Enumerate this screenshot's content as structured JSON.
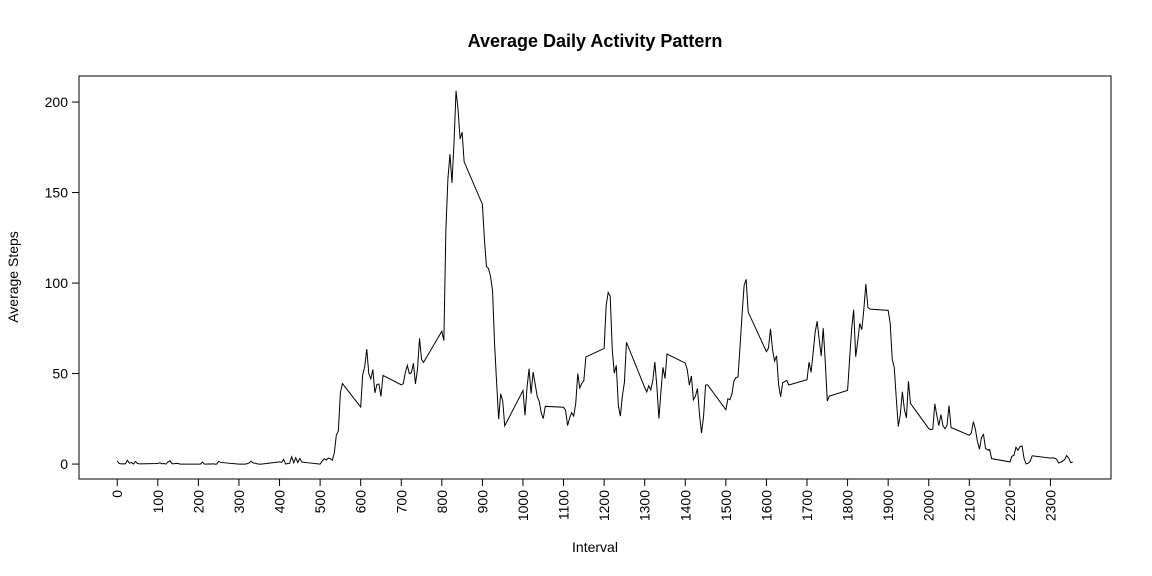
{
  "chart_data": {
    "type": "line",
    "title": "Average Daily Activity Pattern",
    "x_label": "Interval",
    "y_label": "Average Steps",
    "color": "#000000",
    "x": [
      0,
      5,
      10,
      15,
      20,
      25,
      30,
      35,
      40,
      45,
      50,
      55,
      100,
      105,
      110,
      115,
      120,
      125,
      130,
      135,
      140,
      145,
      150,
      155,
      200,
      205,
      210,
      215,
      220,
      225,
      230,
      235,
      240,
      245,
      250,
      255,
      300,
      305,
      310,
      315,
      320,
      325,
      330,
      335,
      340,
      345,
      350,
      355,
      400,
      405,
      410,
      415,
      420,
      425,
      430,
      435,
      440,
      445,
      450,
      455,
      500,
      505,
      510,
      515,
      520,
      525,
      530,
      535,
      540,
      545,
      550,
      555,
      600,
      605,
      610,
      615,
      620,
      625,
      630,
      635,
      640,
      645,
      650,
      655,
      700,
      705,
      710,
      715,
      720,
      725,
      730,
      735,
      740,
      745,
      750,
      755,
      800,
      805,
      810,
      815,
      820,
      825,
      830,
      835,
      840,
      845,
      850,
      855,
      900,
      905,
      910,
      915,
      920,
      925,
      930,
      935,
      940,
      945,
      950,
      955,
      1000,
      1005,
      1010,
      1015,
      1020,
      1025,
      1030,
      1035,
      1040,
      1045,
      1050,
      1055,
      1100,
      1105,
      1110,
      1115,
      1120,
      1125,
      1130,
      1135,
      1140,
      1145,
      1150,
      1155,
      1200,
      1205,
      1210,
      1215,
      1220,
      1225,
      1230,
      1235,
      1240,
      1245,
      1250,
      1255,
      1300,
      1305,
      1310,
      1315,
      1320,
      1325,
      1330,
      1335,
      1340,
      1345,
      1350,
      1355,
      1400,
      1405,
      1410,
      1415,
      1420,
      1425,
      1430,
      1435,
      1440,
      1445,
      1450,
      1455,
      1500,
      1505,
      1510,
      1515,
      1520,
      1525,
      1530,
      1535,
      1540,
      1545,
      1550,
      1555,
      1600,
      1605,
      1610,
      1615,
      1620,
      1625,
      1630,
      1635,
      1640,
      1645,
      1650,
      1655,
      1700,
      1705,
      1710,
      1715,
      1720,
      1725,
      1730,
      1735,
      1740,
      1745,
      1750,
      1755,
      1800,
      1805,
      1810,
      1815,
      1820,
      1825,
      1830,
      1835,
      1840,
      1845,
      1850,
      1855,
      1900,
      1905,
      1910,
      1915,
      1920,
      1925,
      1930,
      1935,
      1940,
      1945,
      1950,
      1955,
      2000,
      2005,
      2010,
      2015,
      2020,
      2025,
      2030,
      2035,
      2040,
      2045,
      2050,
      2055,
      2100,
      2105,
      2110,
      2115,
      2120,
      2125,
      2130,
      2135,
      2140,
      2145,
      2150,
      2155,
      2200,
      2205,
      2210,
      2215,
      2220,
      2225,
      2230,
      2235,
      2240,
      2245,
      2250,
      2255,
      2300,
      2305,
      2310,
      2315,
      2320,
      2325,
      2330,
      2335,
      2340,
      2345,
      2350,
      2355
    ],
    "values": [
      1.7,
      0.3,
      0.1,
      0.2,
      0.1,
      2.1,
      0.5,
      0.9,
      0,
      1.5,
      0.3,
      0.1,
      0.3,
      0.7,
      0.2,
      0.3,
      0,
      1.1,
      1.8,
      0.2,
      0.2,
      0.4,
      0.3,
      0,
      0,
      0,
      1.1,
      0,
      0,
      0.1,
      0,
      0.2,
      0,
      0,
      1.5,
      0.9,
      0,
      0,
      0,
      0,
      0.2,
      0.6,
      1.6,
      0.6,
      0.5,
      0.1,
      0,
      0,
      1.2,
      0.9,
      2.6,
      0,
      0.3,
      0.4,
      4.1,
      0.7,
      3.5,
      0.8,
      3.1,
      1.1,
      0,
      1.6,
      3,
      2.2,
      3.3,
      3,
      2.1,
      6.1,
      16,
      18.3,
      39.5,
      44.5,
      31.5,
      49.3,
      53.8,
      63.5,
      50,
      47.1,
      52.2,
      39.3,
      44,
      44.2,
      37.4,
      49,
      43.8,
      44.4,
      50.5,
      54.5,
      49.9,
      50.5,
      55.7,
      44.3,
      52.3,
      69.5,
      57.8,
      56.2,
      73.4,
      68.2,
      129.4,
      157.5,
      171.2,
      155.4,
      177.3,
      206.2,
      195.9,
      179.6,
      183.4,
      167,
      143.5,
      124,
      109.1,
      108.1,
      103.7,
      95.9,
      66.2,
      45.2,
      24.8,
      38.8,
      35,
      21.1,
      40.6,
      26.9,
      42.4,
      52.7,
      38.9,
      50.8,
      44.3,
      37.4,
      34.7,
      28.3,
      25.1,
      31.9,
      31.4,
      29.7,
      21.3,
      25.5,
      28.4,
      26.5,
      33.4,
      50,
      42,
      44.6,
      46,
      59.2,
      63.9,
      87.6,
      94.8,
      92.8,
      63.4,
      50.2,
      54.5,
      32.4,
      26.5,
      37.7,
      45.1,
      67.3,
      42.3,
      39.9,
      43.3,
      41,
      46.2,
      56.4,
      42.8,
      25.1,
      40,
      53.5,
      47.3,
      60.8,
      55.8,
      52,
      43.6,
      48.7,
      35.5,
      37.5,
      41.8,
      27.5,
      17.1,
      26.1,
      43.6,
      43.8,
      30,
      36.1,
      35.5,
      38.8,
      46,
      47.8,
      48.1,
      65.3,
      82.9,
      98.7,
      102.1,
      84,
      62.1,
      64.1,
      74.7,
      63.2,
      56.9,
      59.8,
      43.9,
      37.1,
      45,
      45.5,
      46.2,
      43.7,
      46.6,
      56.3,
      50.7,
      61.2,
      72.7,
      78.9,
      68.9,
      59.7,
      75.1,
      56.5,
      34.8,
      37.5,
      40.7,
      58,
      74.7,
      85.3,
      59.3,
      67.8,
      77.7,
      74.2,
      85.3,
      99.5,
      86.6,
      85.6,
      84.9,
      77.8,
      58,
      53.4,
      36.3,
      20.7,
      27.4,
      40,
      30.2,
      25.5,
      45.7,
      33.5,
      19.6,
      19,
      19.3,
      33.3,
      26.8,
      21.2,
      27.3,
      21.3,
      19.5,
      21.3,
      32.3,
      20.2,
      15.9,
      17.2,
      23.5,
      19.2,
      12.5,
      8.2,
      14.7,
      16.3,
      8.7,
      7.8,
      8.1,
      3,
      1.2,
      4.3,
      4.8,
      9.3,
      7.6,
      9.7,
      10,
      3,
      0.1,
      0.4,
      1.5,
      4.6,
      3.3,
      3.5,
      3.2,
      2.8,
      0.6,
      1,
      1.6,
      2.5,
      4.7,
      3.3,
      0.8,
      1.1
    ],
    "xlim": [
      -94.2,
      2449.2
    ],
    "ylim": [
      -8.25,
      214.4
    ],
    "xticks": [
      0,
      100,
      200,
      300,
      400,
      500,
      600,
      700,
      800,
      900,
      1000,
      1100,
      1200,
      1300,
      1400,
      1500,
      1600,
      1700,
      1800,
      1900,
      2000,
      2100,
      2200,
      2300
    ],
    "yticks": [
      0,
      50,
      100,
      150,
      200
    ]
  }
}
